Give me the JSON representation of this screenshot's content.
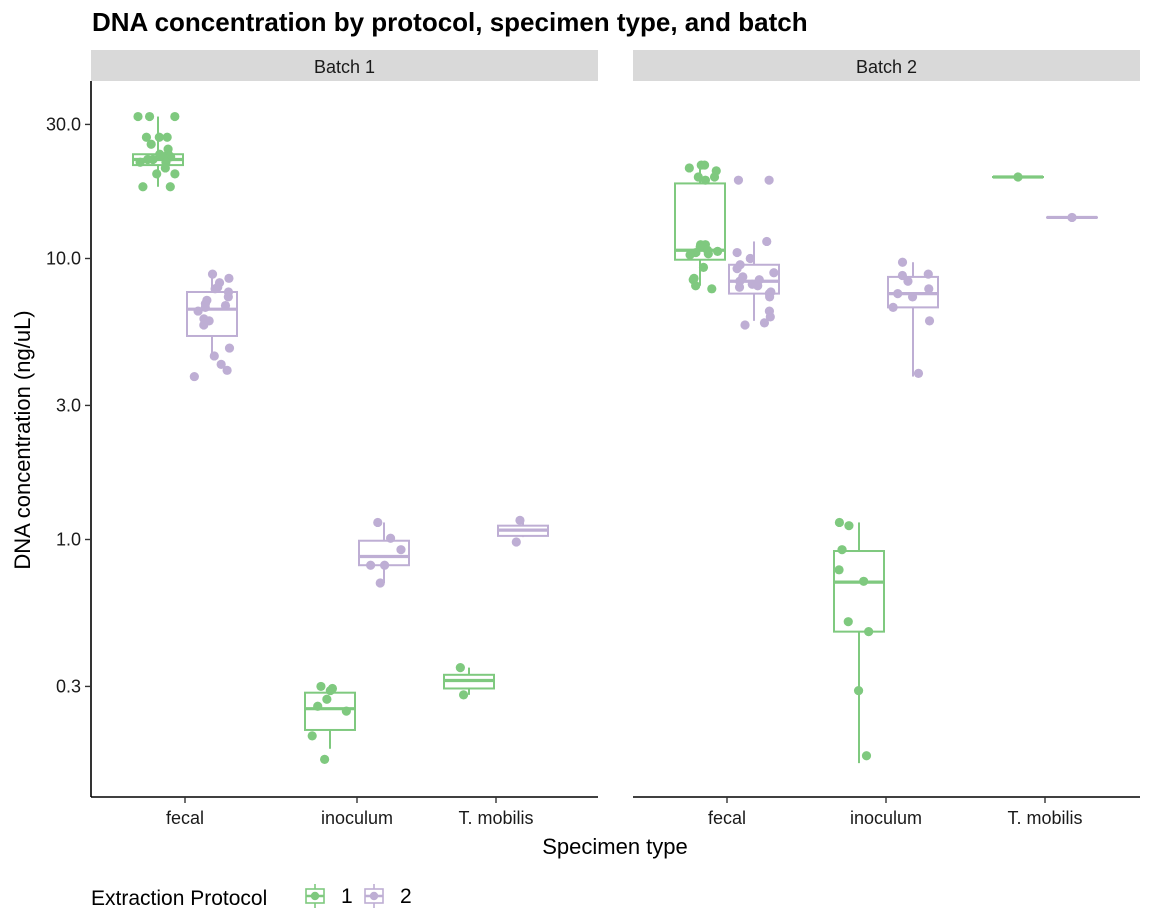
{
  "chart_data": {
    "type": "boxplot",
    "title": "DNA concentration by protocol, specimen type, and batch",
    "xlabel": "Specimen type",
    "ylabel": "DNA concentration (ng/uL)",
    "y_scale": "log10",
    "ylim": [
      0.12,
      40
    ],
    "y_ticks": [
      {
        "value": 0.3,
        "label": "0.3"
      },
      {
        "value": 1.0,
        "label": "1.0"
      },
      {
        "value": 3.0,
        "label": "3.0"
      },
      {
        "value": 10.0,
        "label": "10.0"
      },
      {
        "value": 30.0,
        "label": "30.0"
      }
    ],
    "categories": [
      "fecal",
      "inoculum",
      "T. mobilis"
    ],
    "legend": {
      "title": "Extraction Protocol",
      "position": "bottom-left",
      "entries": [
        {
          "label": "1",
          "color": "#7fc97f"
        },
        {
          "label": "2",
          "color": "#beaed4"
        }
      ]
    },
    "panels": [
      {
        "name": "Batch 1",
        "groups": [
          {
            "category": "fecal",
            "protocol": "1",
            "box": {
              "min": 18,
              "q1": 21.5,
              "median": 22.5,
              "q3": 23.5,
              "max": 32
            },
            "points": [
              32,
              32,
              32,
              27,
              27,
              27,
              25.5,
              24.5,
              23.5,
              23.5,
              23,
              23,
              23,
              22.5,
              22.5,
              22.5,
              22,
              22,
              21,
              20,
              20,
              18,
              18
            ]
          },
          {
            "category": "fecal",
            "protocol": "2",
            "box": {
              "min": 4.5,
              "q1": 5.3,
              "median": 6.6,
              "q3": 7.6,
              "max": 8.8
            },
            "points": [
              8.8,
              8.5,
              8.2,
              7.9,
              7.8,
              7.6,
              7.3,
              7.1,
              6.9,
              6.8,
              6.7,
              6.5,
              6.1,
              6.0,
              5.8,
              4.8,
              4.5,
              4.2,
              4.0,
              3.8
            ]
          },
          {
            "category": "inoculum",
            "protocol": "1",
            "box": {
              "min": 0.18,
              "q1": 0.21,
              "median": 0.25,
              "q3": 0.285,
              "max": 0.3
            },
            "points": [
              0.3,
              0.295,
              0.29,
              0.27,
              0.255,
              0.245,
              0.2,
              0.165
            ]
          },
          {
            "category": "inoculum",
            "protocol": "2",
            "box": {
              "min": 0.7,
              "q1": 0.81,
              "median": 0.87,
              "q3": 0.99,
              "max": 1.15
            },
            "points": [
              1.15,
              1.01,
              0.92,
              0.81,
              0.81,
              0.7
            ]
          },
          {
            "category": "T. mobilis",
            "protocol": "1",
            "box": {
              "min": 0.28,
              "q1": 0.295,
              "median": 0.315,
              "q3": 0.33,
              "max": 0.35
            },
            "points": [
              0.35,
              0.28
            ]
          },
          {
            "category": "T. mobilis",
            "protocol": "2",
            "box": {
              "min": 1.02,
              "q1": 1.03,
              "median": 1.08,
              "q3": 1.12,
              "max": 1.16
            },
            "points": [
              1.17,
              0.98
            ]
          }
        ]
      },
      {
        "name": "Batch 2",
        "groups": [
          {
            "category": "fecal",
            "protocol": "1",
            "box": {
              "min": 8.0,
              "q1": 9.9,
              "median": 10.7,
              "q3": 18.5,
              "max": 21.5
            },
            "points": [
              21.5,
              21.5,
              21,
              20.5,
              19.5,
              19.5,
              19,
              11.2,
              11.2,
              11,
              10.7,
              10.6,
              10.5,
              10.4,
              10.3,
              9.3,
              8.5,
              8.4,
              8.0,
              7.8
            ]
          },
          {
            "category": "fecal",
            "protocol": "2",
            "box": {
              "min": 6.0,
              "q1": 7.5,
              "median": 8.3,
              "q3": 9.5,
              "max": 11.5
            },
            "points": [
              19,
              19,
              11.5,
              10.5,
              10,
              9.5,
              9.2,
              8.9,
              8.6,
              8.4,
              8.3,
              8.1,
              8.0,
              7.9,
              7.6,
              7.5,
              7.3,
              6.5,
              6.2,
              5.9,
              5.8
            ]
          },
          {
            "category": "inoculum",
            "protocol": "1",
            "box": {
              "min": 0.16,
              "q1": 0.47,
              "median": 0.705,
              "q3": 0.91,
              "max": 1.15
            },
            "points": [
              1.15,
              1.12,
              0.92,
              0.78,
              0.71,
              0.51,
              0.47,
              0.29,
              0.17
            ]
          },
          {
            "category": "inoculum",
            "protocol": "2",
            "box": {
              "min": 3.8,
              "q1": 6.7,
              "median": 7.5,
              "q3": 8.6,
              "max": 9.7
            },
            "points": [
              9.7,
              8.8,
              8.7,
              8.3,
              7.8,
              7.5,
              7.3,
              6.7,
              6.0,
              3.9
            ]
          },
          {
            "category": "T. mobilis",
            "protocol": "1",
            "box": {
              "min": 19.5,
              "q1": 19.5,
              "median": 19.5,
              "q3": 19.5,
              "max": 19.5
            },
            "points": [
              19.5
            ]
          },
          {
            "category": "T. mobilis",
            "protocol": "2",
            "box": {
              "min": 14.0,
              "q1": 14.0,
              "median": 14.0,
              "q3": 14.0,
              "max": 14.0
            },
            "points": [
              14.0
            ]
          }
        ]
      }
    ]
  }
}
